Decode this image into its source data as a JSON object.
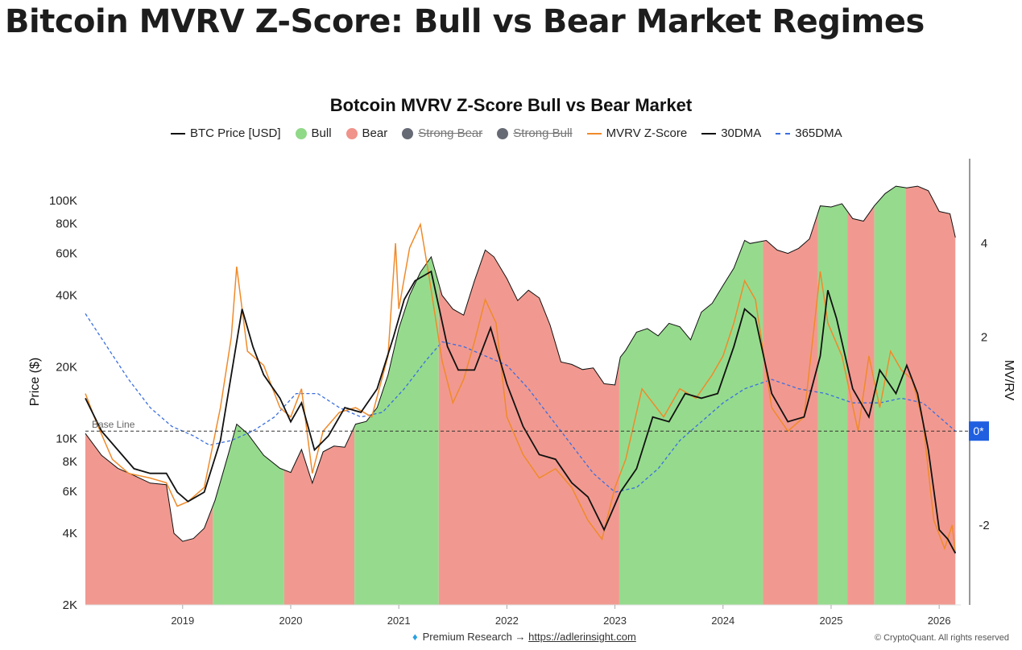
{
  "page_title": "Bitcoin MVRV Z-Score: Bull vs Bear Market Regimes",
  "chart_data": {
    "type": "area",
    "title": "Botcoin MVRV Z-Score Bull vs Bear Market",
    "ylabel_left": "Price ($)",
    "ylabel_right": "MV/RV",
    "y_scale_left": "log",
    "ylim_left": [
      2000,
      150000
    ],
    "ylim_right": [
      -3.7,
      5.8
    ],
    "left_ticks": [
      "2K",
      "4K",
      "6K",
      "8K",
      "10K",
      "20K",
      "40K",
      "60K",
      "80K",
      "100K"
    ],
    "left_tick_values": [
      2000,
      4000,
      6000,
      8000,
      10000,
      20000,
      40000,
      60000,
      80000,
      100000
    ],
    "right_ticks": [
      "-2",
      "2",
      "4"
    ],
    "right_tick_values": [
      -2,
      2,
      4
    ],
    "right_marker": "0*",
    "base_line_label": "Base Line",
    "base_line_value": 0,
    "x_ticks": [
      "2019",
      "2020",
      "2021",
      "2022",
      "2023",
      "2024",
      "2025",
      "2026"
    ],
    "x_tick_values": [
      2019,
      2020,
      2021,
      2022,
      2023,
      2024,
      2025,
      2026
    ],
    "xlim": [
      2018.1,
      2026.2
    ],
    "legend": [
      {
        "label": "BTC Price [USD]",
        "kind": "line",
        "color": "#111111",
        "enabled": true
      },
      {
        "label": "Bull",
        "kind": "dot",
        "color": "#90d987",
        "enabled": true
      },
      {
        "label": "Bear",
        "kind": "dot",
        "color": "#f0938a",
        "enabled": true
      },
      {
        "label": "Strong Bear",
        "kind": "dot",
        "color": "#666a75",
        "enabled": false
      },
      {
        "label": "Strong Bull",
        "kind": "dot",
        "color": "#666a75",
        "enabled": false
      },
      {
        "label": "MVRV Z-Score",
        "kind": "line",
        "color": "#f08a2a",
        "enabled": true
      },
      {
        "label": "30DMA",
        "kind": "line",
        "color": "#111111",
        "enabled": true
      },
      {
        "label": "365DMA",
        "kind": "dash",
        "color": "#3b6fe0",
        "enabled": true
      }
    ],
    "regimes": [
      {
        "start": 2018.1,
        "end": 2019.28,
        "type": "Bear"
      },
      {
        "start": 2019.28,
        "end": 2019.94,
        "type": "Bull"
      },
      {
        "start": 2019.94,
        "end": 2020.59,
        "type": "Bear"
      },
      {
        "start": 2020.59,
        "end": 2021.37,
        "type": "Bull"
      },
      {
        "start": 2021.37,
        "end": 2023.04,
        "type": "Bear"
      },
      {
        "start": 2023.04,
        "end": 2024.37,
        "type": "Bull"
      },
      {
        "start": 2024.37,
        "end": 2024.88,
        "type": "Bear"
      },
      {
        "start": 2024.88,
        "end": 2025.15,
        "type": "Bull"
      },
      {
        "start": 2025.15,
        "end": 2025.4,
        "type": "Bear"
      },
      {
        "start": 2025.4,
        "end": 2025.69,
        "type": "Bull"
      },
      {
        "start": 2025.69,
        "end": 2026.15,
        "type": "Bear"
      }
    ],
    "btc_price": {
      "x": [
        2018.1,
        2018.25,
        2018.4,
        2018.55,
        2018.7,
        2018.85,
        2018.92,
        2019.0,
        2019.1,
        2019.2,
        2019.3,
        2019.42,
        2019.5,
        2019.6,
        2019.75,
        2019.9,
        2020.0,
        2020.1,
        2020.2,
        2020.3,
        2020.4,
        2020.5,
        2020.6,
        2020.7,
        2020.8,
        2020.9,
        2021.0,
        2021.1,
        2021.2,
        2021.3,
        2021.4,
        2021.5,
        2021.6,
        2021.7,
        2021.8,
        2021.88,
        2022.0,
        2022.1,
        2022.2,
        2022.3,
        2022.4,
        2022.5,
        2022.6,
        2022.7,
        2022.8,
        2022.9,
        2023.0,
        2023.05,
        2023.1,
        2023.2,
        2023.3,
        2023.4,
        2023.5,
        2023.6,
        2023.7,
        2023.8,
        2023.9,
        2024.0,
        2024.1,
        2024.2,
        2024.25,
        2024.4,
        2024.5,
        2024.6,
        2024.7,
        2024.8,
        2024.9,
        2025.0,
        2025.1,
        2025.2,
        2025.3,
        2025.4,
        2025.5,
        2025.6,
        2025.7,
        2025.8,
        2025.9,
        2026.0,
        2026.1,
        2026.15
      ],
      "y": [
        10500,
        8500,
        7500,
        7000,
        6500,
        6400,
        4000,
        3700,
        3800,
        4200,
        5500,
        8500,
        11500,
        10500,
        8500,
        7500,
        7200,
        9000,
        6500,
        8800,
        9300,
        9200,
        11500,
        11800,
        13500,
        18500,
        29000,
        40000,
        50000,
        58000,
        40000,
        35000,
        33000,
        46000,
        62000,
        58000,
        47000,
        38000,
        42000,
        39000,
        30000,
        21000,
        20500,
        19500,
        19800,
        17000,
        16800,
        22000,
        23500,
        28000,
        29000,
        27000,
        30500,
        29500,
        26000,
        34000,
        37000,
        44000,
        52000,
        68000,
        66000,
        68000,
        62000,
        60000,
        63000,
        69000,
        95000,
        94000,
        97000,
        84000,
        82000,
        95000,
        107000,
        115000,
        113000,
        115000,
        110000,
        90000,
        88000,
        70000
      ]
    },
    "mvrv_zscore": {
      "x": [
        2018.1,
        2018.2,
        2018.35,
        2018.5,
        2018.7,
        2018.85,
        2018.95,
        2019.05,
        2019.2,
        2019.35,
        2019.45,
        2019.5,
        2019.6,
        2019.75,
        2019.9,
        2020.0,
        2020.1,
        2020.2,
        2020.3,
        2020.45,
        2020.6,
        2020.75,
        2020.9,
        2020.97,
        2021.0,
        2021.1,
        2021.2,
        2021.28,
        2021.4,
        2021.5,
        2021.6,
        2021.7,
        2021.8,
        2021.9,
        2022.0,
        2022.15,
        2022.3,
        2022.45,
        2022.6,
        2022.75,
        2022.88,
        2023.0,
        2023.1,
        2023.25,
        2023.45,
        2023.6,
        2023.75,
        2023.9,
        2024.0,
        2024.1,
        2024.2,
        2024.3,
        2024.45,
        2024.6,
        2024.75,
        2024.9,
        2024.97,
        2025.1,
        2025.25,
        2025.35,
        2025.45,
        2025.55,
        2025.65,
        2025.75,
        2025.85,
        2025.95,
        2026.05,
        2026.12,
        2026.15
      ],
      "y": [
        0.8,
        0.2,
        -0.6,
        -0.9,
        -1.0,
        -1.1,
        -1.6,
        -1.5,
        -1.2,
        0.5,
        2.0,
        3.5,
        1.7,
        1.4,
        0.5,
        0.3,
        0.9,
        -0.9,
        0.0,
        0.4,
        0.5,
        0.3,
        1.6,
        4.0,
        2.6,
        3.9,
        4.4,
        3.3,
        1.5,
        0.6,
        1.1,
        1.9,
        2.8,
        2.3,
        0.3,
        -0.5,
        -1.0,
        -0.8,
        -1.2,
        -1.9,
        -2.3,
        -1.2,
        -0.6,
        0.9,
        0.3,
        0.9,
        0.7,
        1.2,
        1.6,
        2.3,
        3.2,
        2.8,
        0.5,
        0.0,
        0.3,
        3.4,
        2.3,
        1.6,
        0.0,
        1.6,
        0.5,
        1.7,
        1.3,
        1.1,
        0.2,
        -1.9,
        -2.5,
        -2.0,
        -2.6
      ]
    },
    "dma_30": {
      "x": [
        2018.1,
        2018.25,
        2018.4,
        2018.55,
        2018.7,
        2018.85,
        2018.95,
        2019.05,
        2019.2,
        2019.35,
        2019.45,
        2019.55,
        2019.65,
        2019.75,
        2019.9,
        2020.0,
        2020.1,
        2020.22,
        2020.35,
        2020.5,
        2020.65,
        2020.8,
        2020.95,
        2021.05,
        2021.15,
        2021.3,
        2021.45,
        2021.55,
        2021.7,
        2021.85,
        2022.0,
        2022.15,
        2022.3,
        2022.45,
        2022.6,
        2022.75,
        2022.9,
        2023.05,
        2023.2,
        2023.35,
        2023.5,
        2023.65,
        2023.8,
        2023.95,
        2024.1,
        2024.2,
        2024.3,
        2024.45,
        2024.6,
        2024.75,
        2024.9,
        2024.97,
        2025.05,
        2025.2,
        2025.35,
        2025.45,
        2025.6,
        2025.7,
        2025.8,
        2025.9,
        2026.0,
        2026.08,
        2026.15
      ],
      "y": [
        0.7,
        0.0,
        -0.4,
        -0.8,
        -0.9,
        -0.9,
        -1.3,
        -1.5,
        -1.3,
        -0.2,
        1.2,
        2.6,
        1.8,
        1.2,
        0.7,
        0.2,
        0.6,
        -0.4,
        -0.1,
        0.5,
        0.4,
        0.9,
        2.0,
        2.8,
        3.2,
        3.4,
        1.8,
        1.3,
        1.3,
        2.2,
        1.0,
        0.1,
        -0.5,
        -0.6,
        -1.1,
        -1.4,
        -2.1,
        -1.3,
        -0.8,
        0.3,
        0.2,
        0.8,
        0.7,
        0.8,
        1.8,
        2.6,
        2.4,
        0.8,
        0.2,
        0.3,
        1.6,
        3.0,
        2.4,
        0.9,
        0.3,
        1.3,
        0.8,
        1.4,
        0.8,
        -0.4,
        -2.1,
        -2.3,
        -2.6
      ]
    },
    "dma_365": {
      "x": [
        2018.1,
        2018.3,
        2018.5,
        2018.7,
        2018.9,
        2019.1,
        2019.25,
        2019.45,
        2019.65,
        2019.85,
        2020.05,
        2020.25,
        2020.45,
        2020.65,
        2020.85,
        2021.05,
        2021.25,
        2021.4,
        2021.6,
        2021.8,
        2022.0,
        2022.2,
        2022.4,
        2022.6,
        2022.8,
        2023.0,
        2023.2,
        2023.4,
        2023.6,
        2023.8,
        2024.0,
        2024.2,
        2024.45,
        2024.7,
        2024.95,
        2025.2,
        2025.45,
        2025.65,
        2025.85,
        2026.0,
        2026.15
      ],
      "y": [
        2.5,
        1.8,
        1.1,
        0.5,
        0.1,
        -0.1,
        -0.3,
        -0.2,
        0.0,
        0.3,
        0.8,
        0.8,
        0.5,
        0.3,
        0.4,
        0.9,
        1.5,
        1.9,
        1.8,
        1.6,
        1.4,
        0.9,
        0.3,
        -0.3,
        -0.9,
        -1.3,
        -1.2,
        -0.8,
        -0.2,
        0.2,
        0.6,
        0.9,
        1.1,
        0.9,
        0.8,
        0.6,
        0.6,
        0.7,
        0.6,
        0.3,
        0.0
      ]
    }
  },
  "footer": {
    "premium_text": "Premium Research →",
    "link_text": "https://adlerinsight.com",
    "copyright": "© CryptoQuant. All rights reserved"
  }
}
